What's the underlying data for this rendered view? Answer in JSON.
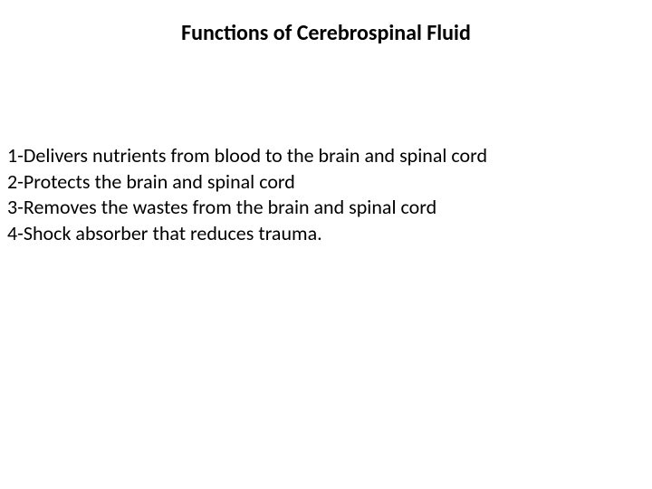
{
  "slide": {
    "title": "Functions of Cerebrospinal Fluid",
    "items": [
      "1-Delivers nutrients from blood to the brain and spinal cord",
      "2-Protects the brain and spinal cord",
      "3-Removes the wastes from the brain and spinal cord",
      "4-Shock absorber that reduces trauma."
    ],
    "colors": {
      "background": "#ffffff",
      "text": "#000000"
    },
    "typography": {
      "title_fontsize": 24,
      "title_weight": "bold",
      "body_fontsize": 22,
      "font_family": "Calibri"
    }
  }
}
